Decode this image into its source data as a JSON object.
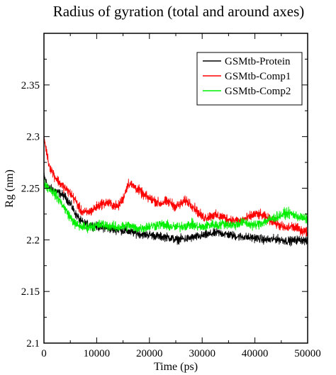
{
  "chart_data": {
    "type": "line",
    "title": "Radius of gyration (total and around axes)",
    "xlabel": "Time (ps)",
    "ylabel": "Rg (nm)",
    "xlim": [
      0,
      50000
    ],
    "ylim": [
      2.1,
      2.4
    ],
    "x_ticks": [
      0,
      10000,
      20000,
      30000,
      40000,
      50000
    ],
    "x_tick_labels": [
      "0",
      "10000",
      "20000",
      "30000",
      "40000",
      "50000"
    ],
    "y_ticks": [
      2.1,
      2.15,
      2.2,
      2.25,
      2.3,
      2.35
    ],
    "y_tick_labels": [
      "2.1",
      "2.15",
      "2.2",
      "2.25",
      "2.3",
      "2.35"
    ],
    "grid": false,
    "legend_position": "top-right",
    "series": [
      {
        "name": "GSMtb-Protein",
        "color": "#000000",
        "x": [
          0,
          500,
          1000,
          2000,
          3000,
          4000,
          5000,
          6000,
          7000,
          8000,
          9000,
          10000,
          11000,
          12000,
          13000,
          14000,
          15000,
          16000,
          17000,
          18000,
          19000,
          20000,
          21000,
          22000,
          23000,
          24000,
          25000,
          26000,
          27000,
          28000,
          29000,
          30000,
          31000,
          32000,
          33000,
          34000,
          35000,
          36000,
          37000,
          38000,
          39000,
          40000,
          41000,
          42000,
          43000,
          44000,
          45000,
          46000,
          47000,
          48000,
          49000,
          50000
        ],
        "y": [
          2.262,
          2.255,
          2.25,
          2.248,
          2.245,
          2.242,
          2.235,
          2.225,
          2.218,
          2.215,
          2.214,
          2.213,
          2.212,
          2.211,
          2.21,
          2.21,
          2.209,
          2.208,
          2.207,
          2.206,
          2.205,
          2.205,
          2.204,
          2.203,
          2.203,
          2.202,
          2.2,
          2.201,
          2.201,
          2.202,
          2.203,
          2.204,
          2.205,
          2.206,
          2.207,
          2.206,
          2.205,
          2.204,
          2.203,
          2.203,
          2.202,
          2.202,
          2.201,
          2.2,
          2.2,
          2.201,
          2.2,
          2.199,
          2.199,
          2.2,
          2.2,
          2.198
        ]
      },
      {
        "name": "GSMtb-Comp1",
        "color": "#ff0000",
        "x": [
          0,
          500,
          1000,
          2000,
          3000,
          4000,
          5000,
          6000,
          7000,
          8000,
          9000,
          10000,
          11000,
          12000,
          13000,
          14000,
          15000,
          16000,
          17000,
          18000,
          19000,
          20000,
          21000,
          22000,
          23000,
          24000,
          25000,
          26000,
          27000,
          28000,
          29000,
          30000,
          31000,
          32000,
          33000,
          34000,
          35000,
          36000,
          37000,
          38000,
          39000,
          40000,
          41000,
          42000,
          43000,
          44000,
          45000,
          46000,
          47000,
          48000,
          49000,
          50000
        ],
        "y": [
          2.3,
          2.285,
          2.272,
          2.262,
          2.255,
          2.25,
          2.245,
          2.238,
          2.228,
          2.226,
          2.228,
          2.232,
          2.235,
          2.236,
          2.234,
          2.232,
          2.24,
          2.255,
          2.252,
          2.248,
          2.243,
          2.24,
          2.238,
          2.235,
          2.237,
          2.236,
          2.232,
          2.235,
          2.238,
          2.234,
          2.228,
          2.222,
          2.222,
          2.224,
          2.223,
          2.222,
          2.22,
          2.219,
          2.218,
          2.22,
          2.222,
          2.225,
          2.224,
          2.222,
          2.219,
          2.216,
          2.213,
          2.211,
          2.213,
          2.211,
          2.209,
          2.207
        ]
      },
      {
        "name": "GSMtb-Comp2",
        "color": "#00ee00",
        "x": [
          0,
          500,
          1000,
          2000,
          3000,
          4000,
          5000,
          6000,
          7000,
          8000,
          9000,
          10000,
          11000,
          12000,
          13000,
          14000,
          15000,
          16000,
          17000,
          18000,
          19000,
          20000,
          21000,
          22000,
          23000,
          24000,
          25000,
          26000,
          27000,
          28000,
          29000,
          30000,
          31000,
          32000,
          33000,
          34000,
          35000,
          36000,
          37000,
          38000,
          39000,
          40000,
          41000,
          42000,
          43000,
          44000,
          45000,
          46000,
          47000,
          48000,
          49000,
          50000
        ],
        "y": [
          2.256,
          2.252,
          2.25,
          2.245,
          2.238,
          2.23,
          2.222,
          2.215,
          2.213,
          2.212,
          2.213,
          2.214,
          2.215,
          2.214,
          2.213,
          2.212,
          2.213,
          2.214,
          2.212,
          2.211,
          2.212,
          2.213,
          2.214,
          2.215,
          2.214,
          2.213,
          2.212,
          2.213,
          2.214,
          2.215,
          2.213,
          2.212,
          2.214,
          2.215,
          2.214,
          2.216,
          2.215,
          2.214,
          2.216,
          2.217,
          2.215,
          2.214,
          2.216,
          2.218,
          2.22,
          2.222,
          2.224,
          2.226,
          2.225,
          2.223,
          2.221,
          2.22
        ]
      }
    ]
  }
}
